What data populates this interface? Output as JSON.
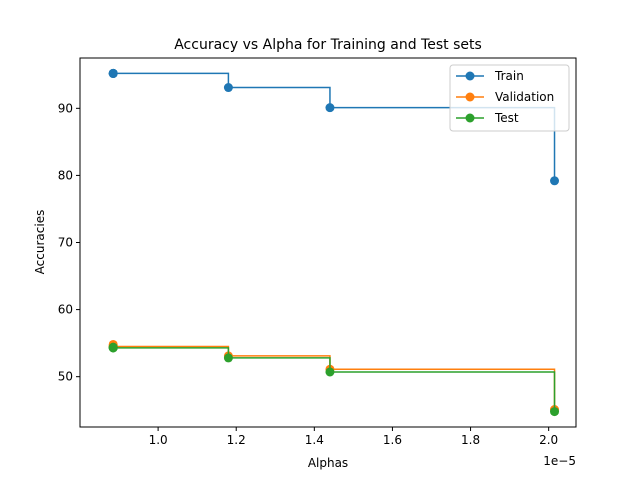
{
  "chart_data": {
    "type": "line",
    "title": "Accuracy vs Alpha for Training and Test sets",
    "xlabel": "Alphas",
    "ylabel": "Accuracies",
    "x_offset_label": "1e−5",
    "drawstyle": "steps-post",
    "xlim": [
      8e-06,
      2.07e-05
    ],
    "ylim": [
      42.5,
      97.5
    ],
    "xticks": [
      1e-05,
      1.2e-05,
      1.4e-05,
      1.6e-05,
      1.8e-05,
      2e-05
    ],
    "xtick_labels": [
      "1.0",
      "1.2",
      "1.4",
      "1.6",
      "1.8",
      "2.0"
    ],
    "yticks": [
      50,
      60,
      70,
      80,
      90
    ],
    "ytick_labels": [
      "50",
      "60",
      "70",
      "80",
      "90"
    ],
    "grid": false,
    "legend_position": "top-right",
    "x": [
      8.85e-06,
      8.85e-06,
      8.85e-06,
      8.85e-06,
      1.18e-05,
      1.44e-05,
      2.015e-05
    ],
    "series": [
      {
        "name": "Train",
        "color": "#1f77b4",
        "values": [
          95.2,
          95.2,
          95.2,
          95.2,
          93.1,
          90.1,
          79.2
        ]
      },
      {
        "name": "Validation",
        "color": "#ff7f0e",
        "values": [
          54.8,
          54.6,
          54.5,
          54.5,
          53.1,
          51.1,
          45.1
        ]
      },
      {
        "name": "Test",
        "color": "#2ca02c",
        "values": [
          54.4,
          54.3,
          54.3,
          54.3,
          52.8,
          50.7,
          44.8
        ]
      }
    ]
  }
}
